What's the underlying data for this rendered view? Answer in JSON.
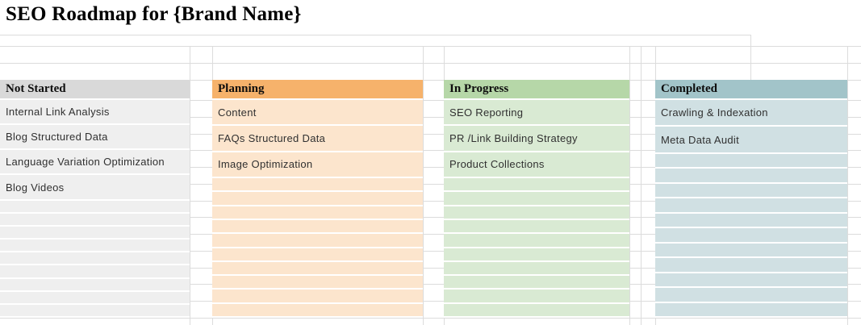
{
  "title": "SEO Roadmap for {Brand Name}",
  "board": {
    "columns": [
      {
        "id": "not-started",
        "header": "Not Started",
        "header_bg": "#d9d9d9",
        "body_bg": "#efefef",
        "items": [
          "Internal Link Analysis",
          "Blog Structured Data",
          "Language Variation Optimization",
          "Blog Videos"
        ]
      },
      {
        "id": "planning",
        "header": "Planning",
        "header_bg": "#f6b26b",
        "body_bg": "#fce5cd",
        "items": [
          "Content",
          "FAQs Structured Data",
          "Image Optimization"
        ]
      },
      {
        "id": "in-progress",
        "header": "In Progress",
        "header_bg": "#b6d7a8",
        "body_bg": "#d9ead3",
        "items": [
          "SEO Reporting",
          "PR /Link Building Strategy",
          "Product Collections"
        ]
      },
      {
        "id": "completed",
        "header": "Completed",
        "header_bg": "#a2c4c9",
        "body_bg": "#d0e0e3",
        "items": [
          "Crawling & Indexation",
          "Meta Data Audit"
        ]
      }
    ],
    "body_row_count": 13
  },
  "grid": {
    "gridline_color": "#dcdcdc",
    "separator_color": "#ffffff"
  }
}
